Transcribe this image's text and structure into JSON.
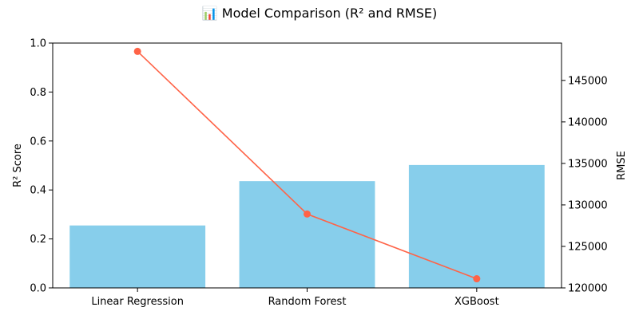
{
  "chart_data": {
    "type": "bar",
    "title": "📊 Model Comparison (R² and RMSE)",
    "categories": [
      "Linear Regression",
      "Random Forest",
      "XGBoost"
    ],
    "series": [
      {
        "name": "R²",
        "type": "bar",
        "axis": "left",
        "color": "#87ceeb",
        "values": [
          0.255,
          0.436,
          0.502
        ]
      },
      {
        "name": "RMSE",
        "type": "line",
        "axis": "right",
        "color": "#ff6347",
        "values": [
          148500,
          128900,
          121100
        ]
      }
    ],
    "ylabel": "R² Score",
    "ylim": [
      0,
      1.0
    ],
    "yticks": [
      "0.0",
      "0.2",
      "0.4",
      "0.6",
      "0.8",
      "1.0"
    ],
    "y2label": "RMSE",
    "y2lim": [
      120000,
      149500
    ],
    "y2ticks": [
      "120000",
      "125000",
      "130000",
      "135000",
      "140000",
      "145000"
    ],
    "grid": false,
    "legend": "none"
  }
}
